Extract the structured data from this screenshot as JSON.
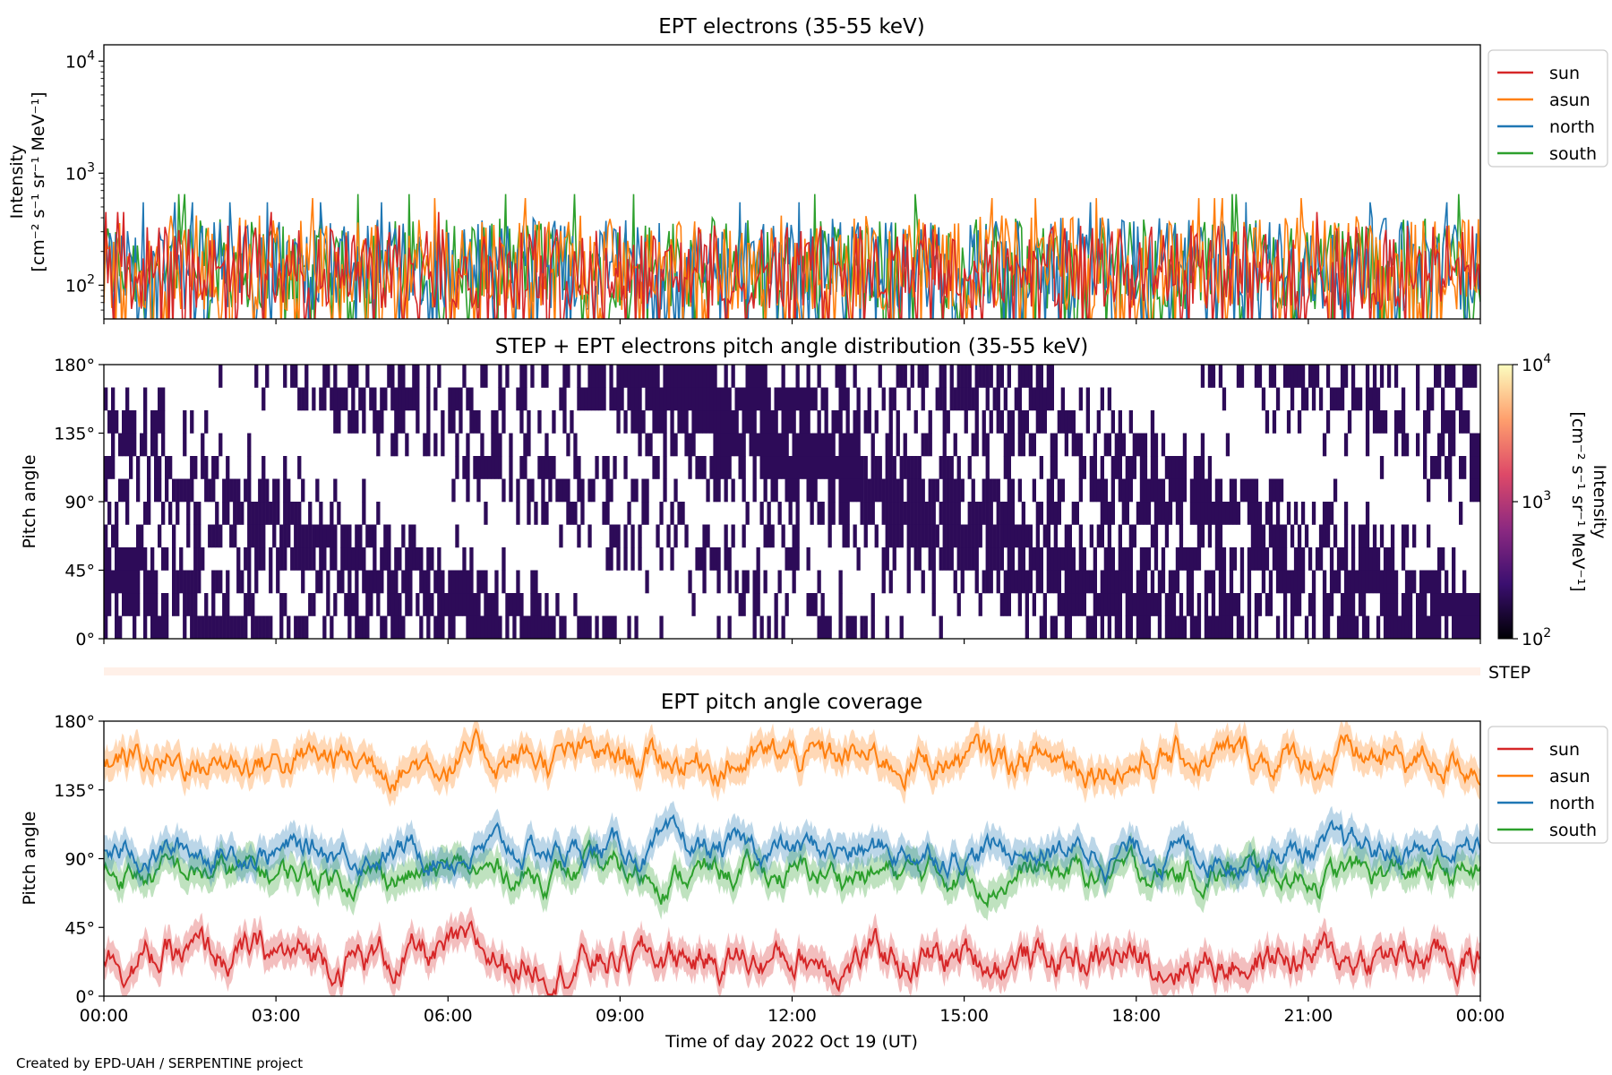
{
  "credit": "Created by EPD-UAH / SERPENTINE project",
  "x_axis": {
    "label": "Time of day 2022 Oct 19 (UT)",
    "ticks": [
      "00:00",
      "03:00",
      "06:00",
      "09:00",
      "12:00",
      "15:00",
      "18:00",
      "21:00",
      "00:00"
    ],
    "range_hours": [
      0,
      24
    ]
  },
  "chart_data": [
    {
      "id": "intensity",
      "type": "line",
      "title": "EPT electrons (35-55 keV)",
      "ylabel": "Intensity",
      "ylabel_units": "[cm⁻² s⁻¹ sr⁻¹ MeV⁻¹]",
      "yscale": "log",
      "ylim": [
        50,
        14000
      ],
      "yticks": [
        {
          "base": "10",
          "exp": "2",
          "value": 100
        },
        {
          "base": "10",
          "exp": "3",
          "value": 1000
        },
        {
          "base": "10",
          "exp": "4",
          "value": 10000
        }
      ],
      "legend_position": "outside-right-top",
      "series": [
        {
          "name": "sun",
          "color": "#d62728",
          "typical_range": [
            50,
            350
          ],
          "note_peak": 450
        },
        {
          "name": "asun",
          "color": "#ff7f0e",
          "typical_range": [
            50,
            420
          ],
          "note_peak": 600
        },
        {
          "name": "north",
          "color": "#1f77b4",
          "typical_range": [
            50,
            400
          ],
          "note_peak": 550
        },
        {
          "name": "south",
          "color": "#2ca02c",
          "typical_range": [
            50,
            400
          ],
          "note_peak": 650
        }
      ]
    },
    {
      "id": "pitch_angle_distribution",
      "type": "heatmap",
      "title": "STEP + EPT electrons pitch angle distribution (35-55 keV)",
      "ylabel": "Pitch angle",
      "ylim": [
        0,
        180
      ],
      "yticks": [
        "0°",
        "45°",
        "90°",
        "135°",
        "180°"
      ],
      "colorbar": {
        "label": "Intensity",
        "units": "[cm⁻² s⁻¹ sr⁻¹ MeV⁻¹]",
        "scale": "log",
        "range": [
          100,
          10000
        ],
        "ticks": [
          {
            "base": "10",
            "exp": "2"
          },
          {
            "base": "10",
            "exp": "3"
          },
          {
            "base": "10",
            "exp": "4"
          }
        ],
        "colormap": [
          "#000004",
          "#3b0f70",
          "#8c2981",
          "#de4968",
          "#fe9f6d",
          "#fcfdbf"
        ]
      },
      "dominant_color": "#2d0b58"
    },
    {
      "id": "step_strip",
      "type": "heatmap",
      "label": "STEP",
      "color": "#fff0e8"
    },
    {
      "id": "pitch_angle_coverage",
      "type": "line",
      "title": "EPT pitch angle coverage",
      "ylabel": "Pitch angle",
      "ylim": [
        0,
        180
      ],
      "yticks": [
        "0°",
        "45°",
        "90°",
        "135°",
        "180°"
      ],
      "legend_position": "outside-right-top",
      "series": [
        {
          "name": "sun",
          "color": "#d62728",
          "mean": 25,
          "spread": 18
        },
        {
          "name": "asun",
          "color": "#ff7f0e",
          "mean": 155,
          "spread": 16
        },
        {
          "name": "north",
          "color": "#1f77b4",
          "mean": 95,
          "spread": 14
        },
        {
          "name": "south",
          "color": "#2ca02c",
          "mean": 80,
          "spread": 14
        }
      ]
    }
  ]
}
